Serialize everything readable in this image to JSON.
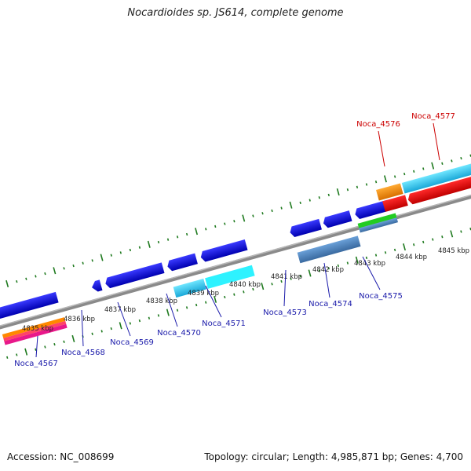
{
  "title": "Nocardioides sp. JS614, complete genome",
  "footer": {
    "accession": "Accession: NC_008699",
    "summary": "Topology: circular; Length: 4,985,871 bp; Genes: 4,700"
  },
  "colors": {
    "forward_cds": "#1010e0",
    "reverse_cds_light": "#19c8e8",
    "tick": "#1f7a1f",
    "backbone": "#808080",
    "label_blue": "#1a1aaa",
    "label_red": "#cc0000"
  },
  "ticks": [
    {
      "label": "4835 kbp"
    },
    {
      "label": "4836 kbp"
    },
    {
      "label": "4837 kbp"
    },
    {
      "label": "4838 kbp"
    },
    {
      "label": "4839 kbp"
    },
    {
      "label": "4840 kbp"
    },
    {
      "label": "4841 kbp"
    },
    {
      "label": "4842 kbp"
    },
    {
      "label": "4843 kbp"
    },
    {
      "label": "4844 kbp"
    },
    {
      "label": "4845 kbp"
    }
  ],
  "genes": [
    {
      "name": "Noca_4567",
      "color": "blue"
    },
    {
      "name": "Noca_4568",
      "color": "blue"
    },
    {
      "name": "Noca_4569",
      "color": "blue"
    },
    {
      "name": "Noca_4570",
      "color": "blue"
    },
    {
      "name": "Noca_4571",
      "color": "blue"
    },
    {
      "name": "Noca_4573",
      "color": "blue"
    },
    {
      "name": "Noca_4574",
      "color": "blue"
    },
    {
      "name": "Noca_4575",
      "color": "blue"
    },
    {
      "name": "Noca_4576",
      "color": "red"
    },
    {
      "name": "Noca_4577",
      "color": "red"
    }
  ]
}
